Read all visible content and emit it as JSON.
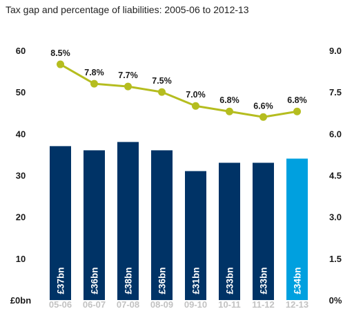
{
  "chart_data": {
    "type": "bar",
    "title": "Tax gap and percentage of liabilities: 2005-06 to 2012-13",
    "categories": [
      "05-06",
      "06-07",
      "07-08",
      "08-09",
      "09-10",
      "10-11",
      "11-12",
      "12-13"
    ],
    "series": [
      {
        "axis": "left",
        "values": [
          37,
          36,
          38,
          36,
          31,
          33,
          33,
          34
        ],
        "labels": [
          "£37bn",
          "£36bn",
          "£38bn",
          "£36bn",
          "£31bn",
          "£33bn",
          "£33bn",
          "£34bn"
        ],
        "colors": [
          "#003366",
          "#003366",
          "#003366",
          "#003366",
          "#003366",
          "#003366",
          "#003366",
          "#00a0df"
        ]
      },
      {
        "type": "line",
        "axis": "right",
        "values": [
          8.5,
          7.8,
          7.7,
          7.5,
          7.0,
          6.8,
          6.6,
          6.8
        ],
        "labels": [
          "8.5%",
          "7.8%",
          "7.7%",
          "7.5%",
          "7.0%",
          "6.8%",
          "6.6%",
          "6.8%"
        ],
        "color": "#b5bd1f"
      }
    ],
    "y_left": {
      "range": [
        0,
        60
      ],
      "ticks": [
        "£0bn",
        "10",
        "20",
        "30",
        "40",
        "50",
        "60"
      ]
    },
    "y_right": {
      "range": [
        0,
        9
      ],
      "ticks": [
        "0%",
        "1.5",
        "3.0",
        "4.5",
        "6.0",
        "7.5",
        "9.0"
      ]
    },
    "grid": false,
    "legend": "none"
  }
}
